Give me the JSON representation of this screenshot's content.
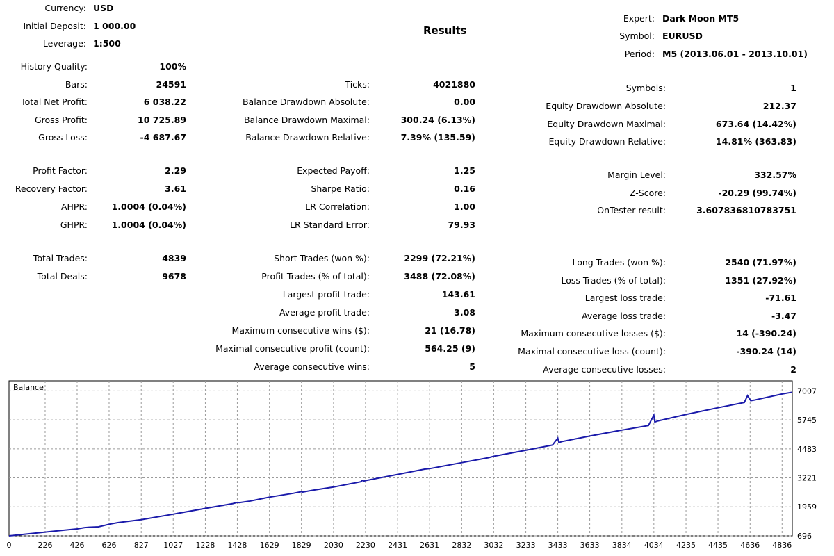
{
  "header": {
    "currency_label": "Currency:",
    "currency": "USD",
    "deposit_label": "Initial Deposit:",
    "deposit": "1 000.00",
    "leverage_label": "Leverage:",
    "leverage": "1:500",
    "results_title": "Results",
    "expert_label": "Expert:",
    "expert": "Dark Moon MT5",
    "symbol_label": "Symbol:",
    "symbol": "EURUSD",
    "period_label": "Period:",
    "period": "M5 (2013.06.01 - 2013.10.01)"
  },
  "left": {
    "history_quality_label": "History Quality:",
    "history_quality": "100%",
    "bars_label": "Bars:",
    "bars": "24591",
    "net_profit_label": "Total Net Profit:",
    "net_profit": "6 038.22",
    "gross_profit_label": "Gross Profit:",
    "gross_profit": "10 725.89",
    "gross_loss_label": "Gross Loss:",
    "gross_loss": "-4 687.67",
    "profit_factor_label": "Profit Factor:",
    "profit_factor": "2.29",
    "recovery_factor_label": "Recovery Factor:",
    "recovery_factor": "3.61",
    "ahpr_label": "AHPR:",
    "ahpr": "1.0004 (0.04%)",
    "ghpr_label": "GHPR:",
    "ghpr": "1.0004 (0.04%)",
    "total_trades_label": "Total Trades:",
    "total_trades": "4839",
    "total_deals_label": "Total Deals:",
    "total_deals": "9678"
  },
  "middle": {
    "ticks_label": "Ticks:",
    "ticks": "4021880",
    "bal_dd_abs_label": "Balance Drawdown Absolute:",
    "bal_dd_abs": "0.00",
    "bal_dd_max_label": "Balance Drawdown Maximal:",
    "bal_dd_max": "300.24 (6.13%)",
    "bal_dd_rel_label": "Balance Drawdown Relative:",
    "bal_dd_rel": "7.39% (135.59)",
    "expected_payoff_label": "Expected Payoff:",
    "expected_payoff": "1.25",
    "sharpe_label": "Sharpe Ratio:",
    "sharpe": "0.16",
    "lr_corr_label": "LR Correlation:",
    "lr_corr": "1.00",
    "lr_err_label": "LR Standard Error:",
    "lr_err": "79.93",
    "short_trades_label": "Short Trades (won %):",
    "short_trades": "2299 (72.21%)",
    "profit_trades_label": "Profit Trades (% of total):",
    "profit_trades": "3488 (72.08%)",
    "largest_profit_label": "Largest profit trade:",
    "largest_profit": "143.61",
    "avg_profit_label": "Average profit trade:",
    "avg_profit": "3.08",
    "max_cons_wins_label": "Maximum consecutive wins ($):",
    "max_cons_wins": "21 (16.78)",
    "max_cons_profit_label": "Maximal consecutive profit (count):",
    "max_cons_profit": "564.25 (9)",
    "avg_cons_wins_label": "Average consecutive wins:",
    "avg_cons_wins": "5"
  },
  "right": {
    "symbols_label": "Symbols:",
    "symbols": "1",
    "eq_dd_abs_label": "Equity Drawdown Absolute:",
    "eq_dd_abs": "212.37",
    "eq_dd_max_label": "Equity Drawdown Maximal:",
    "eq_dd_max": "673.64 (14.42%)",
    "eq_dd_rel_label": "Equity Drawdown Relative:",
    "eq_dd_rel": "14.81% (363.83)",
    "margin_level_label": "Margin Level:",
    "margin_level": "332.57%",
    "z_score_label": "Z-Score:",
    "z_score": "-20.29 (99.74%)",
    "ontester_label": "OnTester result:",
    "ontester": "3.607836810783751",
    "long_trades_label": "Long Trades (won %):",
    "long_trades": "2540 (71.97%)",
    "loss_trades_label": "Loss Trades (% of total):",
    "loss_trades": "1351 (27.92%)",
    "largest_loss_label": "Largest loss trade:",
    "largest_loss": "-71.61",
    "avg_loss_label": "Average loss trade:",
    "avg_loss": "-3.47",
    "max_cons_losses_label": "Maximum consecutive losses ($):",
    "max_cons_losses": "14 (-390.24)",
    "max_cons_loss_label": "Maximal consecutive loss (count):",
    "max_cons_loss": "-390.24 (14)",
    "avg_cons_losses_label": "Average consecutive losses:",
    "avg_cons_losses": "2"
  },
  "chart_data": {
    "type": "line",
    "title": "Balance",
    "xlim": [
      0,
      4900
    ],
    "ylim": [
      696,
      7200
    ],
    "x_ticks": [
      0,
      226,
      426,
      626,
      827,
      1027,
      1228,
      1428,
      1629,
      1829,
      2030,
      2230,
      2431,
      2631,
      2832,
      3032,
      3233,
      3433,
      3633,
      3834,
      4034,
      4235,
      4435,
      4636,
      4836
    ],
    "y_ticks": [
      696,
      1959,
      3221,
      4483,
      5745,
      7007
    ],
    "series": [
      {
        "name": "Balance",
        "color": "#1a1aaa",
        "x": [
          0,
          100,
          200,
          300,
          426,
          470,
          500,
          560,
          626,
          680,
          827,
          1027,
          1228,
          1400,
          1428,
          1440,
          1500,
          1629,
          1780,
          1829,
          1835,
          1900,
          2030,
          2200,
          2210,
          2220,
          2230,
          2431,
          2600,
          2631,
          2832,
          3000,
          3032,
          3233,
          3400,
          3433,
          3440,
          3460,
          3633,
          3834,
          4000,
          4034,
          4040,
          4060,
          4235,
          4435,
          4600,
          4620,
          4640,
          4660,
          4836,
          4900
        ],
        "y": [
          696,
          770,
          840,
          910,
          1000,
          1050,
          1070,
          1090,
          1200,
          1270,
          1400,
          1640,
          1890,
          2100,
          2150,
          2140,
          2200,
          2380,
          2550,
          2620,
          2600,
          2680,
          2820,
          3050,
          3110,
          3080,
          3100,
          3370,
          3600,
          3620,
          3880,
          4100,
          4160,
          4420,
          4650,
          4950,
          4760,
          4800,
          5040,
          5300,
          5500,
          5950,
          5650,
          5700,
          5980,
          6270,
          6500,
          6800,
          6580,
          6600,
          6870,
          6950
        ]
      }
    ]
  }
}
